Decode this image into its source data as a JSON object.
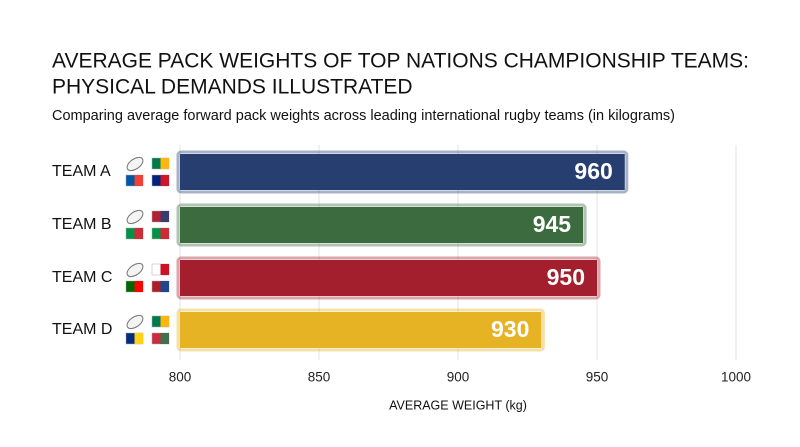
{
  "chart_data": {
    "type": "bar",
    "title": "AVERAGE PACK WEIGHTS OF TOP NATIONS CHAMPIONSHIP TEAMS:",
    "title_line2": "PHYSICAL DEMANDS ILLUSTRATED",
    "subtitle": "Comparing average forward pack weights across leading international rugby teams (in kilograms)",
    "x_label": "AVERAGE WEIGHT (kg)",
    "categories": [
      "TEAM A",
      "TEAM B",
      "TEAM C",
      "TEAM D"
    ],
    "values": [
      960,
      945,
      950,
      930
    ],
    "colors": [
      "#263f70",
      "#3b6b3f",
      "#a31f2d",
      "#e6b324"
    ],
    "xlim": [
      800,
      1000
    ],
    "xticks": [
      800,
      850,
      900,
      950,
      1000
    ],
    "grid": true
  }
}
